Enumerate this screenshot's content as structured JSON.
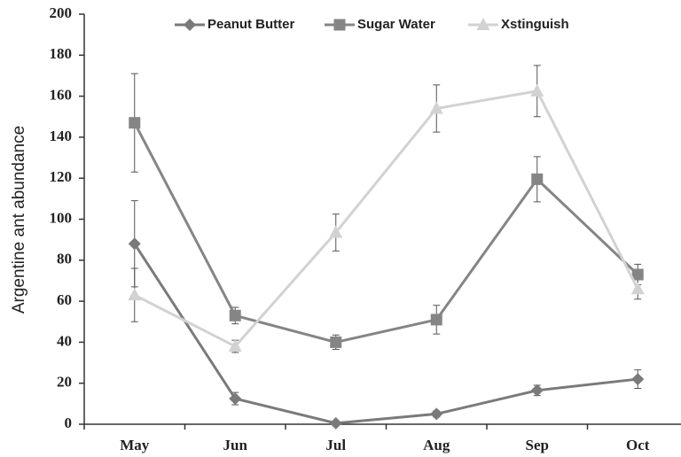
{
  "chart_data": {
    "type": "line",
    "y_label": "Argentine ant abundance",
    "categories": [
      "May",
      "Jun",
      "Jul",
      "Aug",
      "Sep",
      "Oct"
    ],
    "series": [
      {
        "name": "Peanut Butter",
        "color": "#7a7a7a",
        "marker": "diamond",
        "values": [
          88,
          12.5,
          0.5,
          5,
          16.5,
          22
        ],
        "errors": [
          21,
          3,
          1,
          1.5,
          2.5,
          4.5
        ]
      },
      {
        "name": "Sugar Water",
        "color": "#858585",
        "marker": "square",
        "values": [
          147,
          53,
          40,
          51,
          119.5,
          73
        ],
        "errors": [
          24,
          4,
          3.5,
          7,
          11,
          5
        ]
      },
      {
        "name": "Xstinguish",
        "color": "#d2d2d2",
        "marker": "triangle",
        "values": [
          63,
          38,
          93.5,
          154,
          162.5,
          66
        ],
        "errors": [
          13,
          3,
          9,
          11.5,
          12.5,
          5
        ]
      }
    ],
    "ylim": [
      0,
      200
    ],
    "yticks": [
      0,
      20,
      40,
      60,
      80,
      100,
      120,
      140,
      160,
      180,
      200
    ],
    "legend": "top"
  }
}
